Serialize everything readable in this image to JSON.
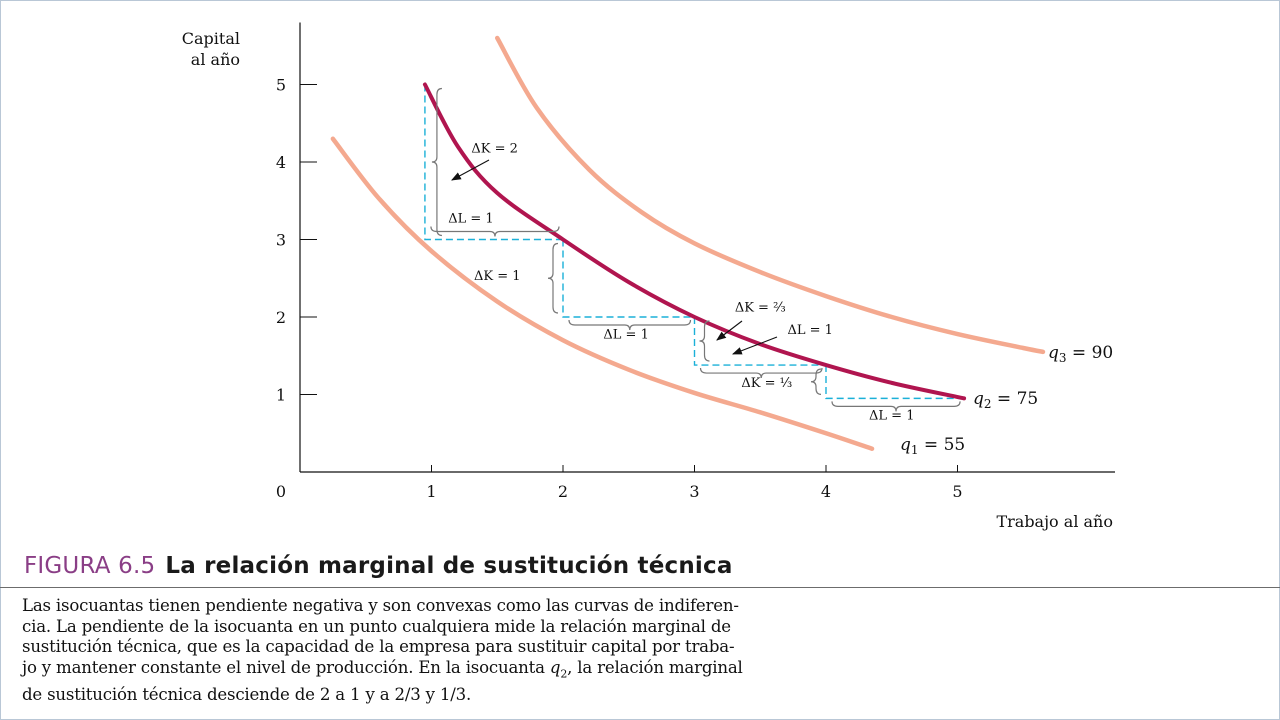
{
  "chart_data": {
    "type": "line",
    "ylabel_lines": [
      "Capital",
      "al año"
    ],
    "xlabel": "Trabajo al año",
    "xlim": [
      0,
      6.4
    ],
    "ylim": [
      0,
      5.8
    ],
    "x_ticks": [
      "0",
      "1",
      "2",
      "3",
      "4",
      "5"
    ],
    "y_ticks": [
      "1",
      "2",
      "3",
      "4",
      "5"
    ],
    "series": [
      {
        "name": "q1 = 55",
        "label_var": "q",
        "label_sub": "1",
        "label_val": " = 55",
        "color": "#f4a98f",
        "x": [
          0.25,
          0.6,
          1.0,
          1.5,
          2.0,
          2.5,
          3.0,
          3.5,
          4.0,
          4.35
        ],
        "y": [
          4.3,
          3.53,
          2.85,
          2.2,
          1.7,
          1.32,
          1.02,
          0.77,
          0.5,
          0.3
        ]
      },
      {
        "name": "q2 = 75",
        "label_var": "q",
        "label_sub": "2",
        "label_val": " = 75",
        "color": "#b0154f",
        "x": [
          0.95,
          1.2,
          1.5,
          2.0,
          2.5,
          3.0,
          3.5,
          4.0,
          4.5,
          5.05
        ],
        "y": [
          5.0,
          4.2,
          3.6,
          3.0,
          2.45,
          2.0,
          1.65,
          1.38,
          1.15,
          0.95
        ]
      },
      {
        "name": "q3 = 90",
        "label_var": "q",
        "label_sub": "3",
        "label_val": " = 90",
        "color": "#f4a98f",
        "x": [
          1.5,
          1.8,
          2.2,
          2.6,
          3.0,
          3.5,
          4.0,
          4.5,
          5.0,
          5.5,
          5.65
        ],
        "y": [
          5.6,
          4.7,
          3.9,
          3.35,
          2.95,
          2.58,
          2.27,
          2.0,
          1.78,
          1.6,
          1.55
        ]
      }
    ],
    "steps": [
      {
        "from": [
          0.95,
          5.0
        ],
        "to": [
          2.0,
          3.0
        ]
      },
      {
        "from": [
          2.0,
          3.0
        ],
        "to": [
          3.0,
          2.0
        ]
      },
      {
        "from": [
          3.0,
          2.0
        ],
        "to": [
          4.0,
          1.38
        ]
      },
      {
        "from": [
          4.0,
          1.38
        ],
        "to": [
          5.05,
          0.95
        ]
      }
    ],
    "annotations": [
      {
        "text": "ΔK = 2",
        "x": 1.48,
        "y": 4.12
      },
      {
        "text": "ΔL = 1",
        "x": 1.3,
        "y": 3.22
      },
      {
        "text": "ΔK = 1",
        "x": 1.5,
        "y": 2.48
      },
      {
        "text": "ΔL = 1",
        "x": 2.48,
        "y": 1.72
      },
      {
        "text": "ΔK = ²⁄₃",
        "x": 3.5,
        "y": 2.07
      },
      {
        "text": "ΔL = 1",
        "x": 3.88,
        "y": 1.78
      },
      {
        "text": "ΔK = ¹⁄₃",
        "x": 3.55,
        "y": 1.1
      },
      {
        "text": "ΔL = 1",
        "x": 4.5,
        "y": 0.68
      }
    ]
  },
  "figure": {
    "number": "FIGURA 6.5",
    "title": "La relación marginal de sustitución técnica"
  },
  "caption": {
    "line1": "Las isocuantas tienen pendiente negativa y son convexas como las curvas de indiferen-",
    "line2": "cia. La pendiente de la isocuanta en un punto cualquiera mide la relación marginal de",
    "line3": "sustitución técnica, que es la capacidad de la empresa para sustituir capital por traba-",
    "line4_before": "jo y mantener constante el nivel de producción. En la isocuanta ",
    "line4_var": "q",
    "line4_sub": "2",
    "line4_after": ", la relación marginal",
    "line5": "de sustitución técnica desciende de 2 a 1 y a 2/3 y 1/3."
  }
}
